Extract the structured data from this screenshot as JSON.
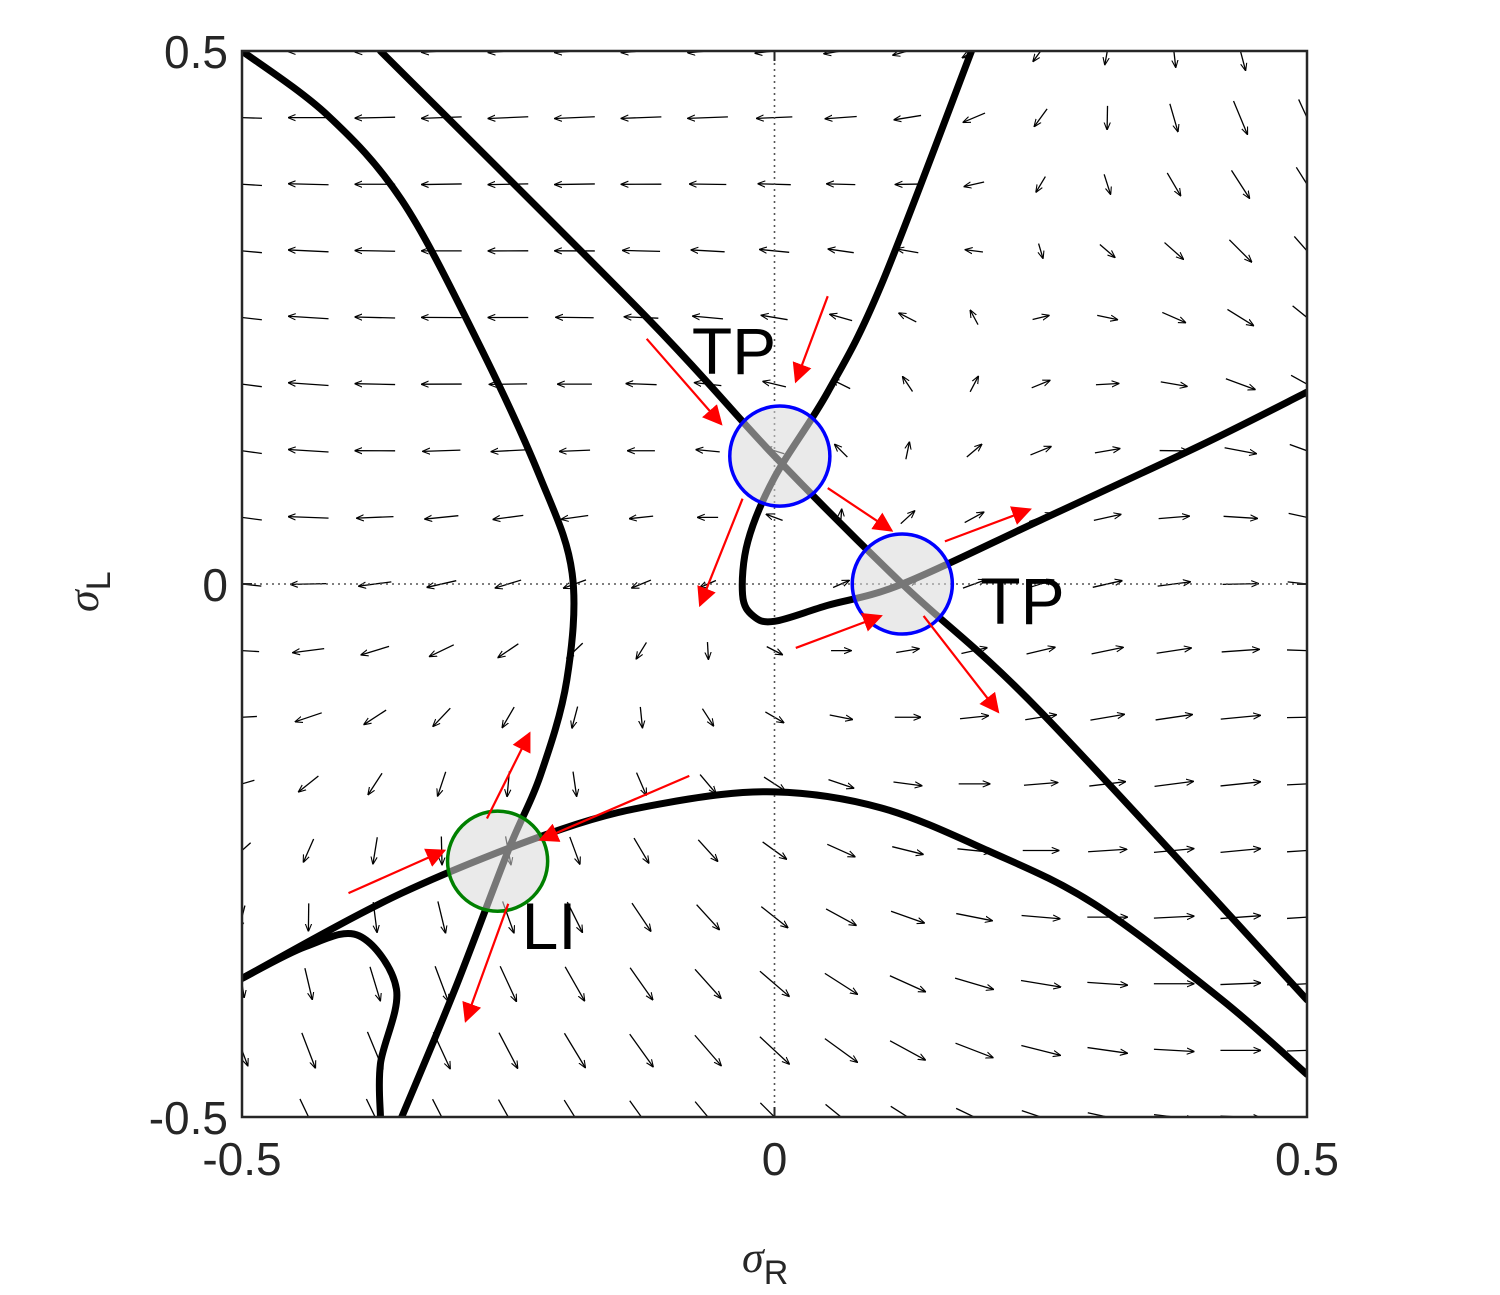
{
  "chart_data": {
    "type": "phase-portrait",
    "xlabel": "σ",
    "xlabel_sub": "R",
    "ylabel": "σ",
    "ylabel_sub": "L",
    "xlim": [
      -0.5,
      0.5
    ],
    "ylim": [
      -0.5,
      0.5
    ],
    "xticks": [
      {
        "v": -0.5,
        "label": "-0.5"
      },
      {
        "v": 0,
        "label": "0"
      },
      {
        "v": 0.5,
        "label": "0.5"
      }
    ],
    "yticks": [
      {
        "v": -0.5,
        "label": "-0.5"
      },
      {
        "v": 0,
        "label": "0"
      },
      {
        "v": 0.5,
        "label": "0.5"
      }
    ],
    "zero_lines": "dotted",
    "nullclines": [
      {
        "name": "branch-1",
        "points": [
          [
            -0.37,
            0.5
          ],
          [
            -0.12,
            0.25
          ],
          [
            0.0,
            0.12
          ],
          [
            0.12,
            0.0
          ],
          [
            0.25,
            -0.12
          ],
          [
            0.5,
            -0.39
          ]
        ]
      },
      {
        "name": "branch-2",
        "points": [
          [
            0.185,
            0.5
          ],
          [
            0.1,
            0.28
          ],
          [
            0.05,
            0.18
          ],
          [
            0.0,
            0.1
          ],
          [
            -0.025,
            0.04
          ],
          [
            -0.03,
            -0.01
          ],
          [
            -0.02,
            -0.03
          ],
          [
            0.0,
            -0.035
          ],
          [
            0.05,
            -0.02
          ],
          [
            0.12,
            0.0
          ],
          [
            0.25,
            0.06
          ],
          [
            0.4,
            0.13
          ],
          [
            0.5,
            0.18
          ]
        ]
      },
      {
        "name": "branch-3",
        "points": [
          [
            -0.5,
            0.5
          ],
          [
            -0.42,
            0.44
          ],
          [
            -0.35,
            0.36
          ],
          [
            -0.28,
            0.23
          ],
          [
            -0.22,
            0.1
          ],
          [
            -0.19,
            0.01
          ],
          [
            -0.195,
            -0.09
          ],
          [
            -0.22,
            -0.18
          ],
          [
            -0.25,
            -0.25
          ],
          [
            -0.3,
            -0.38
          ],
          [
            -0.35,
            -0.5
          ]
        ]
      },
      {
        "name": "branch-4",
        "points": [
          [
            -0.5,
            -0.37
          ],
          [
            -0.35,
            -0.29
          ],
          [
            -0.2,
            -0.23
          ],
          [
            -0.1,
            -0.205
          ],
          [
            0.0,
            -0.195
          ],
          [
            0.1,
            -0.21
          ],
          [
            0.2,
            -0.25
          ],
          [
            0.3,
            -0.3
          ],
          [
            0.42,
            -0.39
          ],
          [
            0.5,
            -0.46
          ]
        ]
      },
      {
        "name": "branch-5",
        "points": [
          [
            -0.5,
            -0.37
          ],
          [
            -0.44,
            -0.34
          ],
          [
            -0.39,
            -0.33
          ],
          [
            -0.355,
            -0.38
          ],
          [
            -0.37,
            -0.45
          ],
          [
            -0.37,
            -0.5
          ]
        ]
      }
    ],
    "fixed_points": [
      {
        "label": "TP",
        "x": 0.005,
        "y": 0.12,
        "color": "#0000ff",
        "r": 0.047,
        "label_at": "above"
      },
      {
        "label": "TP",
        "x": 0.12,
        "y": 0.0,
        "color": "#0000ff",
        "r": 0.047,
        "label_at": "right"
      },
      {
        "label": "LI",
        "x": -0.26,
        "y": -0.26,
        "color": "#008000",
        "r": 0.047,
        "label_at": "below-right"
      }
    ],
    "eigen_arrows": {
      "color": "#ff0000",
      "arrows": [
        [
          -0.12,
          0.23,
          -0.05,
          0.15
        ],
        [
          0.05,
          0.27,
          0.02,
          0.19
        ],
        [
          -0.03,
          0.08,
          -0.07,
          -0.02
        ],
        [
          0.05,
          0.09,
          0.11,
          0.05
        ],
        [
          0.16,
          0.04,
          0.24,
          0.07
        ],
        [
          0.02,
          -0.06,
          0.1,
          -0.03
        ],
        [
          0.14,
          -0.03,
          0.21,
          -0.12
        ],
        [
          -0.08,
          -0.18,
          -0.22,
          -0.24
        ],
        [
          -0.4,
          -0.29,
          -0.31,
          -0.25
        ],
        [
          -0.27,
          -0.22,
          -0.23,
          -0.14
        ],
        [
          -0.25,
          -0.3,
          -0.29,
          -0.41
        ]
      ]
    },
    "vector_field": {
      "grid_step": 0.0625,
      "color": "#000000",
      "F": "u = (x - y)*0.9 + 0.8*x*y ; v = (x + y)*(0.4 - 2*x*x - y)"
    }
  }
}
